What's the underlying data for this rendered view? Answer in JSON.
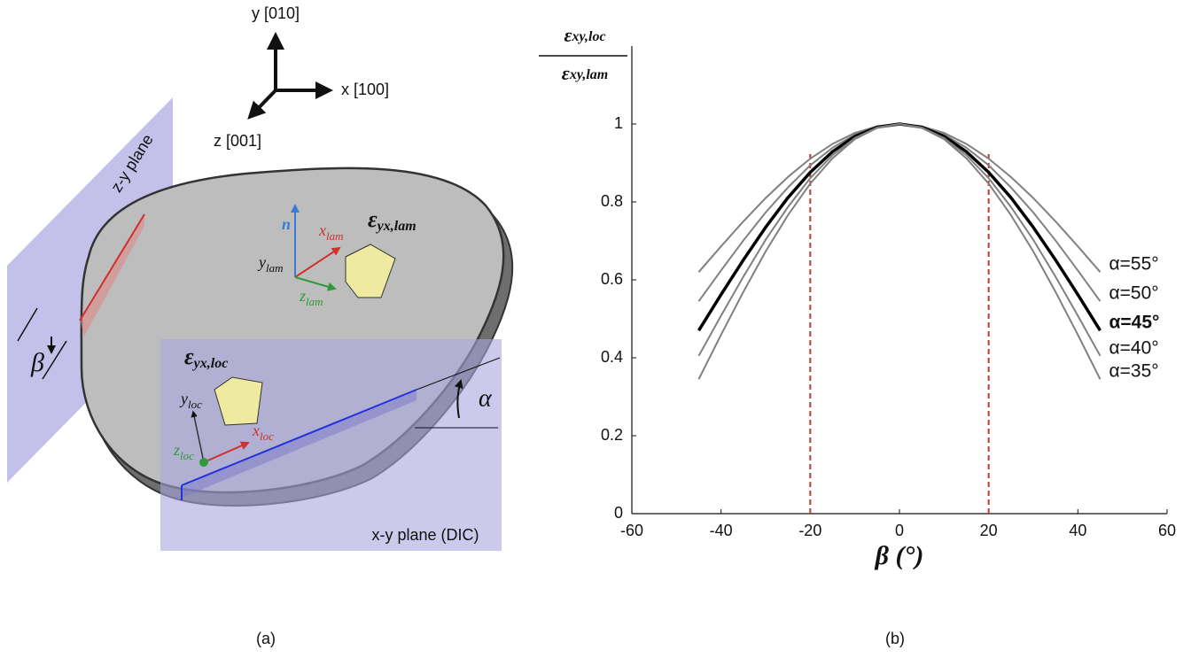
{
  "panel_a": {
    "axes": {
      "y": "y [010]",
      "x": "x [100]",
      "z": "z [001]"
    },
    "planes": {
      "zy": "z-y plane",
      "xy": "x-y plane (DIC)"
    },
    "angles": {
      "beta": "β",
      "alpha": "α"
    },
    "labels": {
      "n": "n",
      "x_lam": {
        "main": "x",
        "sub": "lam"
      },
      "y_lam": {
        "main": "y",
        "sub": "lam"
      },
      "z_lam": {
        "main": "z",
        "sub": "lam"
      },
      "eps_lam": {
        "main": "ε",
        "sub": "yx,lam"
      },
      "eps_loc": {
        "main": "ε",
        "sub": "yx,loc"
      },
      "y_loc": {
        "main": "y",
        "sub": "loc"
      },
      "x_loc": {
        "main": "x",
        "sub": "loc"
      },
      "z_loc": {
        "main": "z",
        "sub": "loc"
      }
    },
    "caption": "(a)"
  },
  "panel_b_caption": "(b)",
  "chart_data": {
    "type": "line",
    "y_label": {
      "numerator": {
        "main": "ε",
        "sub": "xy,loc"
      },
      "denominator": {
        "main": "ε",
        "sub": "xy,lam"
      }
    },
    "x_label": "β (°)",
    "x": [
      -45,
      -40,
      -35,
      -30,
      -25,
      -20,
      -15,
      -10,
      -5,
      0,
      5,
      10,
      15,
      20,
      25,
      30,
      35,
      40,
      45
    ],
    "series": [
      {
        "name": "α=55°",
        "color": "#808080",
        "bold": false,
        "values": [
          0.62,
          0.686,
          0.75,
          0.81,
          0.864,
          0.911,
          0.949,
          0.977,
          0.994,
          1,
          0.994,
          0.977,
          0.949,
          0.911,
          0.864,
          0.81,
          0.75,
          0.686,
          0.62
        ]
      },
      {
        "name": "α=50°",
        "color": "#808080",
        "bold": false,
        "values": [
          0.545,
          0.624,
          0.701,
          0.773,
          0.837,
          0.894,
          0.939,
          0.973,
          0.993,
          1,
          0.993,
          0.973,
          0.939,
          0.894,
          0.837,
          0.773,
          0.701,
          0.624,
          0.545
        ]
      },
      {
        "name": "α=45°",
        "color": "#000000",
        "bold": true,
        "values": [
          0.47,
          0.562,
          0.651,
          0.735,
          0.811,
          0.876,
          0.929,
          0.968,
          0.992,
          1,
          0.992,
          0.968,
          0.929,
          0.876,
          0.811,
          0.735,
          0.651,
          0.562,
          0.47
        ]
      },
      {
        "name": "α=40°",
        "color": "#808080",
        "bold": false,
        "values": [
          0.405,
          0.508,
          0.608,
          0.703,
          0.787,
          0.861,
          0.92,
          0.964,
          0.991,
          1,
          0.991,
          0.964,
          0.92,
          0.861,
          0.787,
          0.703,
          0.608,
          0.508,
          0.405
        ]
      },
      {
        "name": "α=35°",
        "color": "#808080",
        "bold": false,
        "values": [
          0.345,
          0.459,
          0.569,
          0.673,
          0.766,
          0.847,
          0.912,
          0.961,
          0.99,
          1,
          0.99,
          0.961,
          0.912,
          0.847,
          0.766,
          0.673,
          0.569,
          0.459,
          0.345
        ]
      }
    ],
    "reference_lines": [
      {
        "x": -20,
        "ymax": 0.93,
        "color": "#c0392b"
      },
      {
        "x": 20,
        "ymax": 0.93,
        "color": "#c0392b"
      }
    ],
    "xlim": [
      -60,
      60
    ],
    "xticks": [
      -60,
      -40,
      -20,
      0,
      20,
      40,
      60
    ],
    "ylim": [
      0,
      1.2
    ],
    "yticks": [
      0,
      0.2,
      0.4,
      0.6,
      0.8,
      1
    ],
    "grid": false
  }
}
